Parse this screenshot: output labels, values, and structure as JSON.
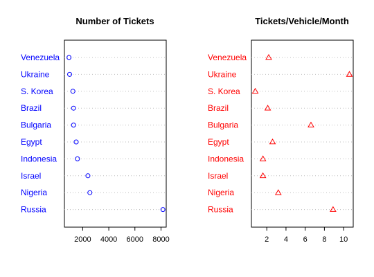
{
  "chart_data": [
    {
      "type": "scatter",
      "title": "Number of Tickets",
      "label_color": "#0000ff",
      "marker": "open-circle",
      "marker_color": "#0000ff",
      "grid": "dotted horizontal guides",
      "categories": [
        "Venezuela",
        "Ukraine",
        "S. Korea",
        "Brazil",
        "Bulgaria",
        "Egypt",
        "Indonesia",
        "Israel",
        "Nigeria",
        "Russia"
      ],
      "values": [
        950,
        1000,
        1250,
        1300,
        1300,
        1500,
        1600,
        2400,
        2550,
        8150
      ],
      "xlim": [
        600,
        8400
      ],
      "xticks": [
        2000,
        4000,
        6000,
        8000
      ]
    },
    {
      "type": "scatter",
      "title": "Tickets/Vehicle/Month",
      "label_color": "#ff0000",
      "marker": "open-triangle",
      "marker_color": "#ff0000",
      "grid": "dotted horizontal guides",
      "categories": [
        "Venezuela",
        "Ukraine",
        "S. Korea",
        "Brazil",
        "Bulgaria",
        "Egypt",
        "Indonesia",
        "Israel",
        "Nigeria",
        "Russia"
      ],
      "values": [
        2.2,
        10.6,
        0.8,
        2.1,
        6.6,
        2.6,
        1.6,
        1.6,
        3.2,
        8.9
      ],
      "xlim": [
        0.4,
        11.0
      ],
      "xticks": [
        2,
        4,
        6,
        8,
        10
      ]
    }
  ]
}
